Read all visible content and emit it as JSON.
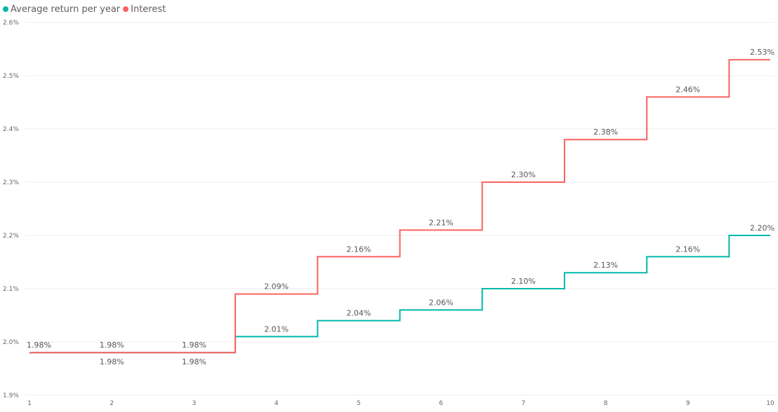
{
  "legend": {
    "items": [
      {
        "label": "Average return per year",
        "color": "#01b8aa"
      },
      {
        "label": "Interest",
        "color": "#fd625e"
      }
    ]
  },
  "chart_data": {
    "type": "line",
    "step": true,
    "x": [
      1,
      2,
      3,
      4,
      5,
      6,
      7,
      8,
      9,
      10
    ],
    "xlim": [
      1,
      10
    ],
    "ylim": [
      1.9,
      2.6
    ],
    "yticks": [
      1.9,
      2.0,
      2.1,
      2.2,
      2.3,
      2.4,
      2.5,
      2.6
    ],
    "ytick_labels": [
      "1.9%",
      "2.0%",
      "2.1%",
      "2.2%",
      "2.3%",
      "2.4%",
      "2.5%",
      "2.6%"
    ],
    "xtick_labels": [
      "1",
      "2",
      "3",
      "4",
      "5",
      "6",
      "7",
      "8",
      "9",
      "10"
    ],
    "grid": true,
    "legend_position": "top-left",
    "title": "",
    "xlabel": "",
    "ylabel": "",
    "series": [
      {
        "name": "Average return per year",
        "color": "#01b8aa",
        "values": [
          1.98,
          1.98,
          1.98,
          2.01,
          2.04,
          2.06,
          2.1,
          2.13,
          2.16,
          2.2
        ],
        "labels": [
          "1.98%",
          "1.98%",
          "1.98%",
          "2.01%",
          "2.04%",
          "2.06%",
          "2.10%",
          "2.13%",
          "2.16%",
          "2.20%"
        ],
        "label_position": [
          "above",
          "below",
          "below",
          "above",
          "above",
          "above",
          "above",
          "above",
          "above",
          "above"
        ]
      },
      {
        "name": "Interest",
        "color": "#fd625e",
        "values": [
          1.98,
          1.98,
          1.98,
          2.09,
          2.16,
          2.21,
          2.3,
          2.38,
          2.46,
          2.53
        ],
        "labels": [
          "1.98%",
          "1.98%",
          "1.98%",
          "2.09%",
          "2.16%",
          "2.21%",
          "2.30%",
          "2.38%",
          "2.46%",
          "2.53%"
        ],
        "label_position": [
          "above",
          "above",
          "above",
          "above",
          "above",
          "above",
          "above",
          "above",
          "above",
          "above"
        ]
      }
    ]
  }
}
